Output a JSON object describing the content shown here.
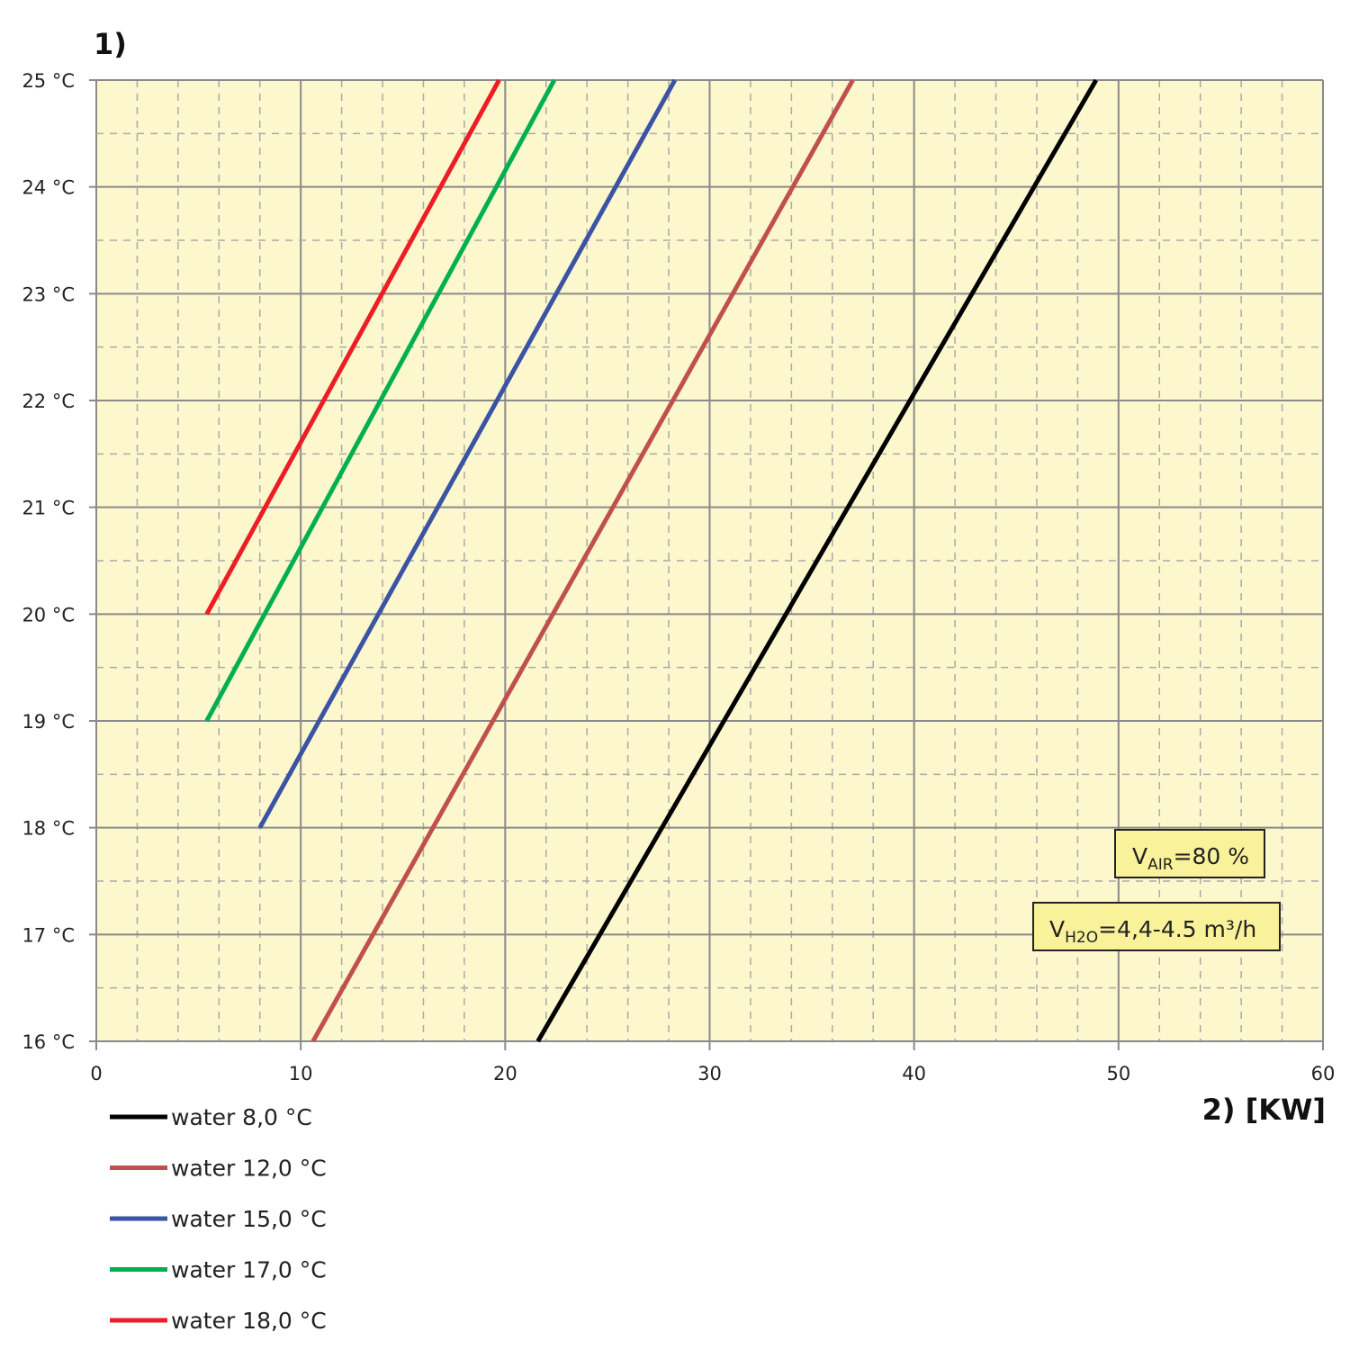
{
  "chart_data": {
    "type": "line",
    "title": "1)",
    "xlabel": "2)  [KW]",
    "ylabel": "",
    "xlim": [
      0,
      60
    ],
    "ylim": [
      16,
      25
    ],
    "x_ticks": [
      "0",
      "10",
      "20",
      "30",
      "40",
      "50",
      "60"
    ],
    "y_ticks": [
      "16 °C",
      "17 °C",
      "18 °C",
      "19 °C",
      "20 °C",
      "21 °C",
      "22 °C",
      "23 °C",
      "24 °C",
      "25 °C"
    ],
    "grid": {
      "major": true,
      "minor_dashed": true
    },
    "background": "#fcf7cc",
    "legend_position": "bottom-left",
    "series": [
      {
        "name": "water 8,0 °C",
        "color": "#000000",
        "points": [
          [
            21.6,
            16
          ],
          [
            48.9,
            25
          ]
        ]
      },
      {
        "name": "water 12,0 °C",
        "color": "#c0504d",
        "points": [
          [
            10.6,
            16
          ],
          [
            37.0,
            25
          ]
        ]
      },
      {
        "name": "water 15,0 °C",
        "color": "#3a53a4",
        "points": [
          [
            8.0,
            18
          ],
          [
            28.3,
            25
          ]
        ]
      },
      {
        "name": "water 17,0 °C",
        "color": "#00b050",
        "points": [
          [
            5.4,
            19
          ],
          [
            22.4,
            25
          ]
        ]
      },
      {
        "name": "water 18,0 °C",
        "color": "#ee1c24",
        "points": [
          [
            5.4,
            20
          ],
          [
            19.7,
            25
          ]
        ]
      }
    ],
    "annotations": [
      {
        "main": "V",
        "sub": "AIR",
        "rest": "=80 %"
      },
      {
        "main": "V",
        "sub": "H2O",
        "rest": "=4,4-4.5 m³/h"
      }
    ]
  }
}
